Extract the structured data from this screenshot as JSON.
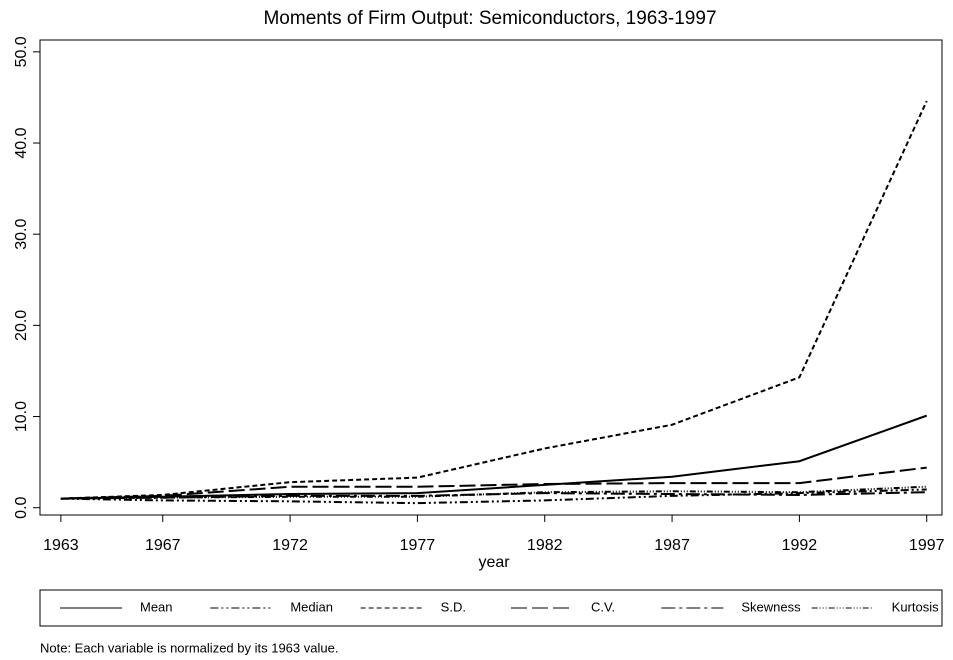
{
  "chart_data": {
    "type": "line",
    "title": "Moments of Firm Output: Semiconductors, 1963-1997",
    "x_label": "year",
    "note": "Note: Each variable is normalized by its 1963 value.",
    "x": [
      1963,
      1967,
      1972,
      1977,
      1982,
      1987,
      1992,
      1997
    ],
    "xlim": [
      1962.18,
      1997.6
    ],
    "xticks": [
      1963,
      1967,
      1972,
      1977,
      1982,
      1987,
      1992,
      1997
    ],
    "ylim": [
      -0.8,
      51.3
    ],
    "yticks": [
      {
        "value": 0,
        "label": "0.0"
      },
      {
        "value": 10,
        "label": "10.0"
      },
      {
        "value": 20,
        "label": "20.0"
      },
      {
        "value": 30,
        "label": "30.0"
      },
      {
        "value": 40,
        "label": "40.0"
      },
      {
        "value": 50,
        "label": "50.0"
      }
    ],
    "grid": false,
    "legend": "bottom",
    "series": [
      {
        "name": "Mean",
        "color": "#000000",
        "dash": "none",
        "values": [
          1,
          1.2,
          1.5,
          1.6,
          2.5,
          3.4,
          5.1,
          10.1
        ]
      },
      {
        "name": "Median",
        "color": "#000000",
        "dash": "8 3 2 3 2 3",
        "values": [
          1,
          0.8,
          0.7,
          0.5,
          0.8,
          1.3,
          1.6,
          2.0
        ]
      },
      {
        "name": "S.D.",
        "color": "#000000",
        "dash": "5 3",
        "values": [
          1,
          1.4,
          2.8,
          3.3,
          6.5,
          9.1,
          14.3,
          44.6
        ]
      },
      {
        "name": "C.V.",
        "color": "#000000",
        "dash": "16 5",
        "values": [
          1,
          1.3,
          2.3,
          2.3,
          2.6,
          2.7,
          2.7,
          4.4
        ]
      },
      {
        "name": "Skewness",
        "color": "#000000",
        "dash": "14 4 3 4",
        "values": [
          1,
          1.1,
          1.3,
          1.3,
          1.6,
          1.5,
          1.4,
          1.7
        ]
      },
      {
        "name": "Kurtosis",
        "color": "#000000",
        "dash": "6 2 1 2 1 2 1 2",
        "values": [
          1,
          1.1,
          1.2,
          1.2,
          1.7,
          1.8,
          1.7,
          2.3
        ]
      }
    ]
  }
}
